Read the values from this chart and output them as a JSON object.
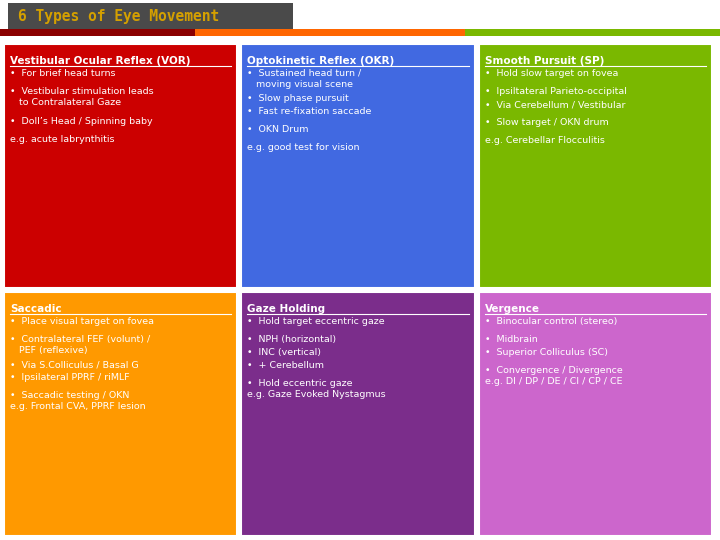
{
  "title": "6 Types of Eye Movement",
  "title_bg": "#4a4a4a",
  "title_color": "#d4a000",
  "bar_colors": [
    "#8b0000",
    "#ff6600",
    "#7ab800"
  ],
  "bg_color": "#ffffff",
  "cells": [
    {
      "row": 0,
      "col": 0,
      "bg": "#cc0000",
      "title": "Vestibular Ocular Reflex (VOR)",
      "title_color": "#ffffff",
      "lines": [
        "•  For brief head turns",
        "",
        "•  Vestibular stimulation leads\n   to Contralateral Gaze",
        "",
        "•  Doll’s Head / Spinning baby",
        "",
        "e.g. acute labrynthitis"
      ]
    },
    {
      "row": 0,
      "col": 1,
      "bg": "#4169e1",
      "title": "Optokinetic Reflex (OKR)",
      "title_color": "#ffffff",
      "lines": [
        "•  Sustained head turn /\n   moving visual scene",
        "•  Slow phase pursuit",
        "•  Fast re-fixation saccade",
        "",
        "•  OKN Drum",
        "",
        "e.g. good test for vision"
      ]
    },
    {
      "row": 0,
      "col": 2,
      "bg": "#7ab800",
      "title": "Smooth Pursuit (SP)",
      "title_color": "#ffffff",
      "lines": [
        "•  Hold slow target on fovea",
        "",
        "•  Ipsiltateral Parieto-occipital",
        "•  Via Cerebellum / Vestibular",
        "",
        "•  Slow target / OKN drum",
        "",
        "e.g. Cerebellar Flocculitis"
      ]
    },
    {
      "row": 1,
      "col": 0,
      "bg": "#ff9900",
      "title": "Saccadic",
      "title_color": "#ffffff",
      "lines": [
        "•  Place visual target on fovea",
        "",
        "•  Contralateral FEF (volunt) /\n   PEF (reflexive)",
        "•  Via S.Colliculus / Basal G",
        "•  Ipsilateral PPRF / riMLF",
        "",
        "•  Saccadic testing / OKN\ne.g. Frontal CVA, PPRF lesion"
      ]
    },
    {
      "row": 1,
      "col": 1,
      "bg": "#7b2d8b",
      "title": "Gaze Holding",
      "title_color": "#ffffff",
      "lines": [
        "•  Hold target eccentric gaze",
        "",
        "•  NPH (horizontal)",
        "•  INC (vertical)",
        "•  + Cerebellum",
        "",
        "•  Hold eccentric gaze\ne.g. Gaze Evoked Nystagmus"
      ]
    },
    {
      "row": 1,
      "col": 2,
      "bg": "#cc66cc",
      "title": "Vergence",
      "title_color": "#ffffff",
      "lines": [
        "•  Binocular control (stereo)",
        "",
        "•  Midbrain",
        "•  Superior Colliculus (SC)",
        "",
        "•  Convergence / Divergence\ne.g. DI / DP / DE / CI / CP / CE"
      ]
    }
  ]
}
